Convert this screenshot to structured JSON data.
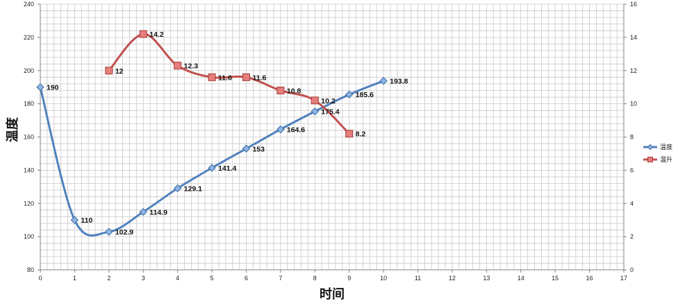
{
  "chart_data": {
    "type": "line",
    "title": "",
    "xlabel": "时间",
    "ylabel": "温度",
    "xlim": [
      0,
      17
    ],
    "ylim": [
      80,
      240
    ],
    "y2lim": [
      0,
      16
    ],
    "x_ticks": [
      0,
      1,
      2,
      3,
      4,
      5,
      6,
      7,
      8,
      9,
      10,
      11,
      12,
      13,
      14,
      15,
      16,
      17
    ],
    "y_ticks": [
      80,
      100,
      120,
      140,
      160,
      180,
      200,
      220,
      240
    ],
    "y2_ticks": [
      0,
      2,
      4,
      6,
      8,
      10,
      12,
      14,
      16
    ],
    "grid": true,
    "smooth": true,
    "legend_position": "right",
    "series": [
      {
        "name": "温度",
        "axis": "left",
        "color": "#4f81bd",
        "marker": "diamond",
        "x": [
          0,
          1,
          2,
          3,
          4,
          5,
          6,
          7,
          8,
          9,
          10
        ],
        "values": [
          190,
          110,
          102.9,
          114.9,
          129.1,
          141.4,
          153,
          164.6,
          175.4,
          185.6,
          193.8
        ],
        "labels": [
          "190",
          "110",
          "102.9",
          "114.9",
          "129.1",
          "141.4",
          "153",
          "164.6",
          "175.4",
          "185.6",
          "193.8"
        ]
      },
      {
        "name": "温升",
        "axis": "right",
        "color": "#c0504d",
        "marker": "square",
        "x": [
          2,
          3,
          4,
          5,
          6,
          7,
          8,
          9
        ],
        "values": [
          12,
          14.2,
          12.3,
          11.6,
          11.6,
          10.8,
          10.2,
          8.2
        ],
        "labels": [
          "12",
          "14.2",
          "12.3",
          "11.6",
          "11.6",
          "10.8",
          "10.2",
          "8.2"
        ]
      }
    ]
  }
}
